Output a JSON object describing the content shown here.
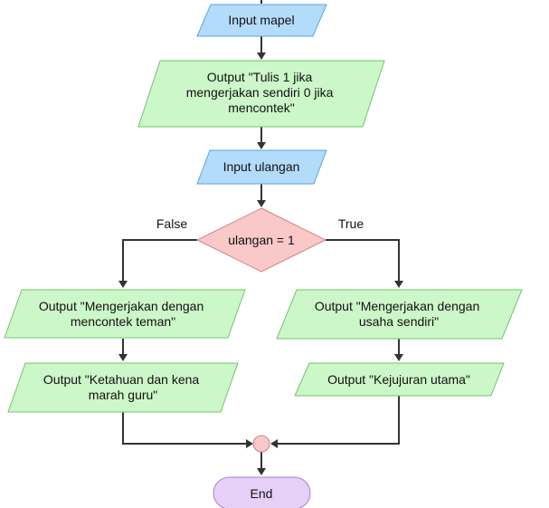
{
  "nodes": {
    "input_mapel": {
      "lines": [
        "Input mapel"
      ]
    },
    "output_tulis": {
      "lines": [
        "Output \"Tulis 1 jika",
        "mengerjakan sendiri 0 jika",
        "mencontek\""
      ]
    },
    "input_ulangan": {
      "lines": [
        "Input ulangan"
      ]
    },
    "decision": {
      "lines": [
        "ulangan = 1"
      ]
    },
    "output_mencontek": {
      "lines": [
        "Output \"Mengerjakan dengan",
        "mencontek teman\""
      ]
    },
    "output_ketahuan": {
      "lines": [
        "Output \"Ketahuan dan kena",
        "marah guru\""
      ]
    },
    "output_usaha": {
      "lines": [
        "Output \"Mengerjakan dengan",
        "usaha sendiri\""
      ]
    },
    "output_kejujuran": {
      "lines": [
        "Output \"Kejujuran utama\""
      ]
    },
    "end": {
      "lines": [
        "End"
      ]
    }
  },
  "edges": {
    "false_label": "False",
    "true_label": "True"
  },
  "colors": {
    "input_fill": "#b3dbfa",
    "input_stroke": "#5aa5e0",
    "output_fill": "#ccf7c8",
    "output_stroke": "#73c46e",
    "decision_fill": "#f9c8c8",
    "decision_stroke": "#d98080",
    "end_fill": "#e6d0f7",
    "end_stroke": "#a67fd0",
    "connector_fill": "#f9c8c8",
    "connector_stroke": "#d98080"
  }
}
